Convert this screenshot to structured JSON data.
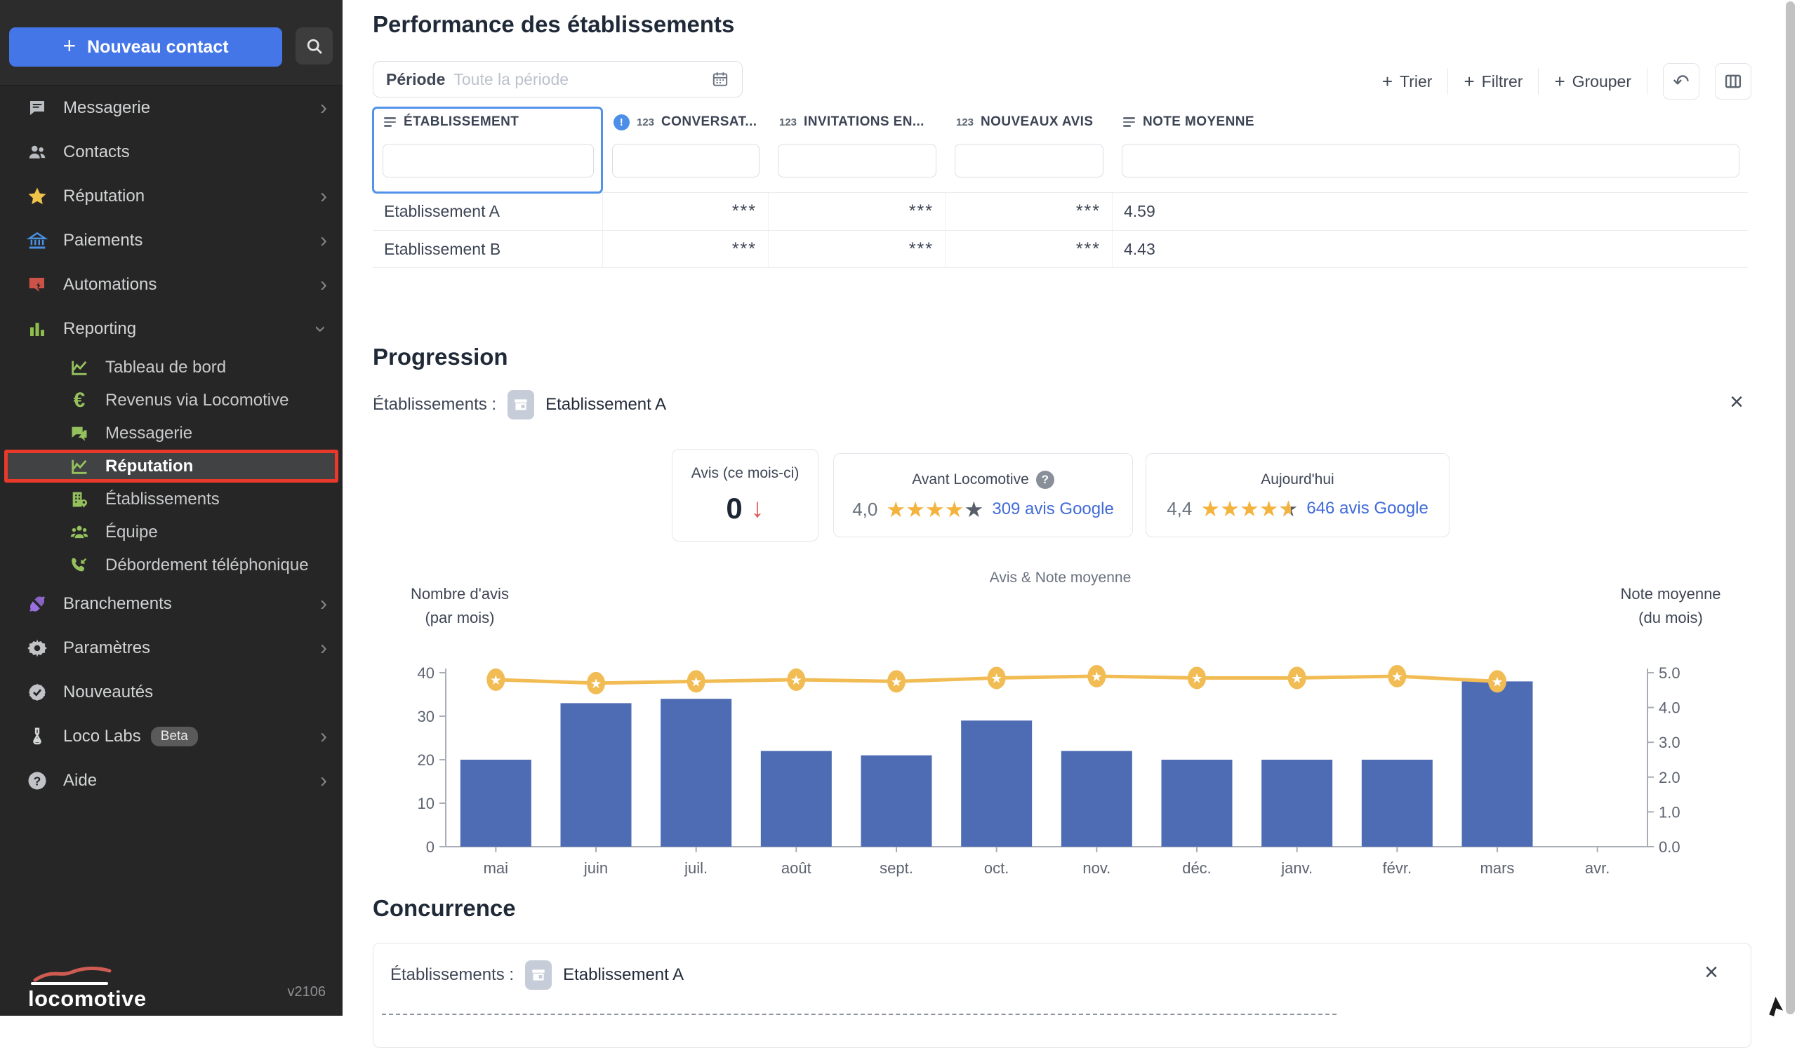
{
  "sidebar": {
    "new_contact": "Nouveau contact",
    "items": [
      {
        "label": "Messagerie"
      },
      {
        "label": "Contacts"
      },
      {
        "label": "Réputation"
      },
      {
        "label": "Paiements"
      },
      {
        "label": "Automations"
      },
      {
        "label": "Reporting"
      },
      {
        "label": "Tableau de bord"
      },
      {
        "label": "Revenus via Locomotive"
      },
      {
        "label": "Messagerie"
      },
      {
        "label": "Réputation"
      },
      {
        "label": "Établissements"
      },
      {
        "label": "Équipe"
      },
      {
        "label": "Débordement téléphonique"
      },
      {
        "label": "Branchements"
      },
      {
        "label": "Paramètres"
      },
      {
        "label": "Nouveautés"
      },
      {
        "label": "Loco Labs"
      },
      {
        "label": "Aide"
      }
    ],
    "beta_badge": "Beta",
    "logo": "locomotive",
    "version": "v2106"
  },
  "page": {
    "title": "Performance des établissements"
  },
  "periode": {
    "label": "Période",
    "placeholder": "Toute la période"
  },
  "toolbar": {
    "sort": "Trier",
    "filter": "Filtrer",
    "group": "Grouper"
  },
  "table": {
    "columns": [
      {
        "label": "ÉTABLISSEMENT",
        "icon": "sort-lines-icon"
      },
      {
        "label": "CONVERSAT...",
        "icon": "number-type-icon",
        "alert": true
      },
      {
        "label": "INVITATIONS EN...",
        "icon": "number-type-icon"
      },
      {
        "label": "NOUVEAUX AVIS",
        "icon": "number-type-icon"
      },
      {
        "label": "NOTE MOYENNE",
        "icon": "sort-lines-icon"
      }
    ],
    "rows": [
      {
        "name": "Etablissement A",
        "conversations": "***",
        "invitations": "***",
        "nouveaux_avis": "***",
        "note": "4.59"
      },
      {
        "name": "Etablissement B",
        "conversations": "***",
        "invitations": "***",
        "nouveaux_avis": "***",
        "note": "4.43"
      }
    ]
  },
  "progression": {
    "title": "Progression",
    "etablissements_label": "Établissements :",
    "etablissement": "Etablissement A",
    "cards": {
      "avis": {
        "title": "Avis (ce mois-ci)",
        "value": "0",
        "trend": "down"
      },
      "avant": {
        "title": "Avant Locomotive",
        "rating": "4,0",
        "stars": [
          1,
          1,
          1,
          1,
          0
        ],
        "link": "309 avis Google"
      },
      "aujourdhui": {
        "title": "Aujourd'hui",
        "rating": "4,4",
        "stars": [
          1,
          1,
          1,
          1,
          0.5
        ],
        "link": "646 avis Google"
      }
    }
  },
  "concurrence": {
    "title": "Concurrence",
    "etablissements_label": "Établissements :",
    "etablissement": "Etablissement A"
  },
  "chart_data": {
    "type": "bar",
    "title": "Avis & Note moyenne",
    "categories": [
      "mai",
      "juin",
      "juil.",
      "août",
      "sept.",
      "oct.",
      "nov.",
      "déc.",
      "janv.",
      "févr.",
      "mars",
      "avr."
    ],
    "series": [
      {
        "name": "Nombre d'avis (par mois)",
        "kind": "bar",
        "axis": "left",
        "values": [
          20,
          33,
          34,
          22,
          21,
          29,
          22,
          20,
          20,
          20,
          38,
          0
        ]
      },
      {
        "name": "Note moyenne (du mois)",
        "kind": "line",
        "axis": "right",
        "values": [
          4.8,
          4.7,
          4.75,
          4.8,
          4.75,
          4.85,
          4.9,
          4.85,
          4.85,
          4.9,
          4.75,
          null
        ]
      }
    ],
    "left_axis": {
      "label_line1": "Nombre d'avis",
      "label_line2": "(par mois)",
      "min": 0,
      "max": 40,
      "ticks": [
        40,
        30,
        20,
        10,
        0
      ]
    },
    "right_axis": {
      "label_line1": "Note moyenne",
      "label_line2": "(du mois)",
      "min": 0,
      "max": 5,
      "tick_labels": [
        "5.0",
        "4.0",
        "3.0",
        "2.0",
        "1.0",
        "0.0"
      ],
      "tick_values": [
        5,
        4,
        3,
        2,
        1,
        0
      ]
    },
    "legend_position": "none",
    "grid": false,
    "colors": {
      "bar": "#4d6cb4",
      "line": "#f2bc54",
      "accent": "#4576e8",
      "link": "#3f6ad8",
      "highlight": "#e8392b"
    }
  }
}
